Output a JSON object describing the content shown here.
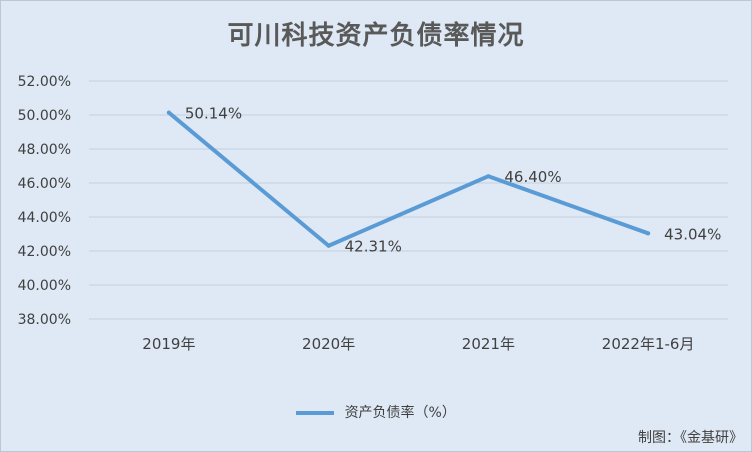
{
  "chart_data": {
    "type": "line",
    "title": "可川科技资产负债率情况",
    "categories": [
      "2019年",
      "2020年",
      "2021年",
      "2022年1-6月"
    ],
    "series": [
      {
        "name": "资产负债率（%）",
        "values": [
          50.14,
          42.31,
          46.4,
          43.04
        ],
        "color": "#5b9bd5"
      }
    ],
    "data_labels": [
      "50.14%",
      "42.31%",
      "46.40%",
      "43.04%"
    ],
    "y_ticks": [
      "38.00%",
      "40.00%",
      "42.00%",
      "44.00%",
      "46.00%",
      "48.00%",
      "50.00%",
      "52.00%"
    ],
    "ylim": [
      38,
      52
    ],
    "grid": true,
    "legend_position": "bottom"
  },
  "source_note": "制图：《金基研》"
}
